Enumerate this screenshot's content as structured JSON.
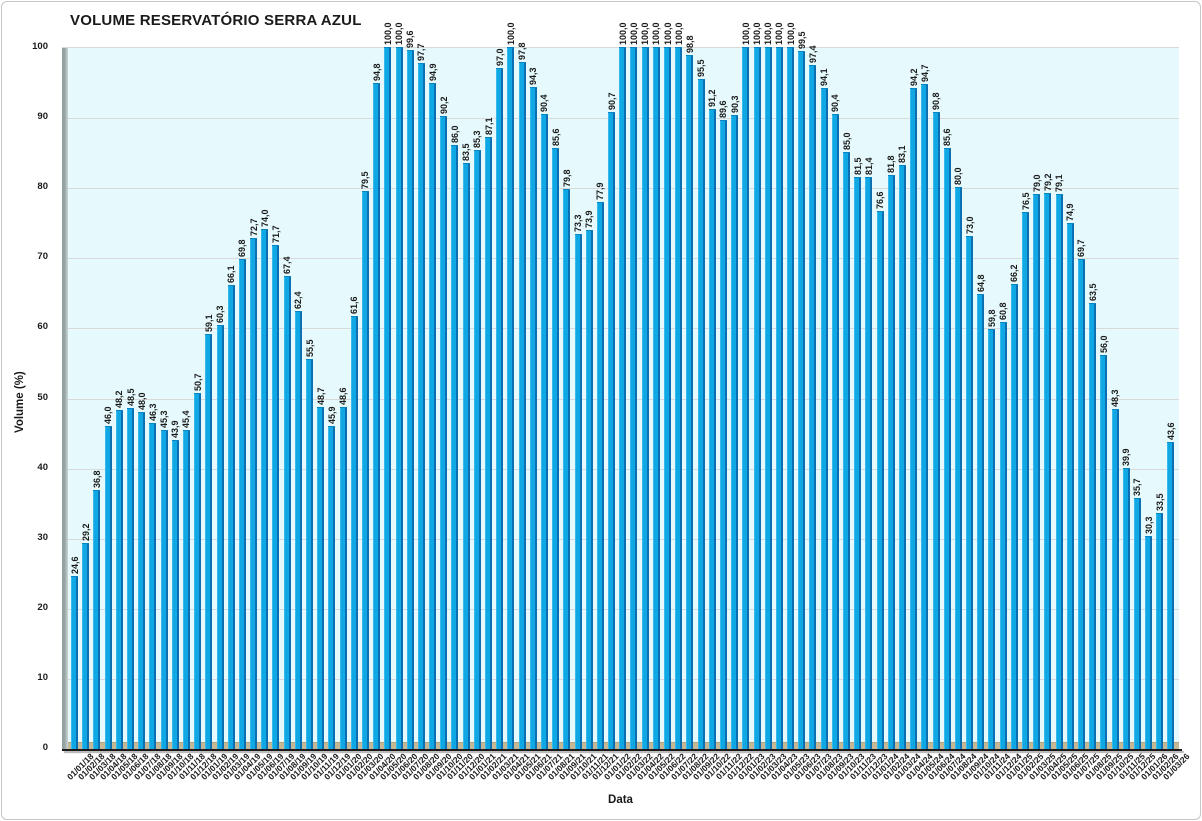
{
  "chart_data": {
    "type": "bar",
    "title": "VOLUME RESERVATÓRIO SERRA AZUL",
    "xlabel": "Data",
    "ylabel": "Volume (%)",
    "ylim": [
      0,
      100
    ],
    "yticks": [
      0,
      10,
      20,
      30,
      40,
      50,
      60,
      70,
      80,
      90,
      100
    ],
    "grid": true,
    "legend_position": "none",
    "value_label_style": "rotated-90-comma-decimal",
    "categories": [
      "01/01/18",
      "01/02/18",
      "01/03/18",
      "01/04/18",
      "01/05/18",
      "01/06/18",
      "01/07/18",
      "01/08/18",
      "01/09/18",
      "01/10/18",
      "01/11/18",
      "01/12/18",
      "01/01/19",
      "01/02/19",
      "01/03/19",
      "01/04/19",
      "01/05/19",
      "01/06/19",
      "01/07/19",
      "01/08/19",
      "01/09/19",
      "01/10/19",
      "01/11/19",
      "01/12/19",
      "01/01/20",
      "01/02/20",
      "01/03/20",
      "01/04/20",
      "01/05/20",
      "01/06/20",
      "01/07/20",
      "01/08/20",
      "01/09/20",
      "01/10/20",
      "01/11/20",
      "01/12/20",
      "01/01/21",
      "01/02/21",
      "01/03/21",
      "01/04/21",
      "01/05/21",
      "01/06/21",
      "01/07/21",
      "01/08/21",
      "01/09/21",
      "01/10/21",
      "01/11/21",
      "01/12/21",
      "01/01/22",
      "01/02/22",
      "01/03/22",
      "01/04/22",
      "01/05/22",
      "01/06/22",
      "01/07/22",
      "01/08/22",
      "01/09/22",
      "01/10/22",
      "01/11/22",
      "01/12/22",
      "01/01/23",
      "01/02/23",
      "01/03/23",
      "01/04/23",
      "01/05/23",
      "01/06/23",
      "01/07/23",
      "01/08/23",
      "01/09/23",
      "01/10/23",
      "01/11/23",
      "01/12/23",
      "01/01/24",
      "01/02/24",
      "01/03/24",
      "01/04/24",
      "01/05/24",
      "01/06/24",
      "01/07/24",
      "01/08/24",
      "01/09/24",
      "01/10/24",
      "01/11/24",
      "01/12/24",
      "01/01/25",
      "01/02/25",
      "01/03/25",
      "01/04/25",
      "01/05/25",
      "01/06/25",
      "01/07/25",
      "01/08/25",
      "01/09/25",
      "01/10/25",
      "01/11/25",
      "01/12/25",
      "01/01/26",
      "01/02/26",
      "01/03/26"
    ],
    "values": [
      24.6,
      29.2,
      36.8,
      46.0,
      48.2,
      48.5,
      48.0,
      46.3,
      45.3,
      43.9,
      45.4,
      50.7,
      59.1,
      60.3,
      66.1,
      69.8,
      72.7,
      74.0,
      71.7,
      67.4,
      62.4,
      55.5,
      48.7,
      45.9,
      48.6,
      61.6,
      79.5,
      94.8,
      100.0,
      100.0,
      99.6,
      97.7,
      94.9,
      90.2,
      86.0,
      83.5,
      85.3,
      87.1,
      97.0,
      100.0,
      97.8,
      94.3,
      90.4,
      85.6,
      79.8,
      73.3,
      73.9,
      77.9,
      90.7,
      100.0,
      100.0,
      100.0,
      100.0,
      100.0,
      100.0,
      98.8,
      95.5,
      91.2,
      89.6,
      90.3,
      100.0,
      100.0,
      100.0,
      100.0,
      100.0,
      99.5,
      97.4,
      94.1,
      90.4,
      85.0,
      81.5,
      81.4,
      76.6,
      81.8,
      83.1,
      94.2,
      94.7,
      90.8,
      85.6,
      80.0,
      73.0,
      64.8,
      59.8,
      60.8,
      66.2,
      76.5,
      79.0,
      79.2,
      79.1,
      74.9,
      69.7,
      63.5,
      56.0,
      48.3,
      39.9,
      35.7,
      30.3,
      33.5,
      43.6
    ],
    "colors": {
      "bar_fill": "#0FA8E4",
      "bar_shade": "#0B6FB2",
      "bar_highlight": "#5BCBF2",
      "plot_background": "#E6FAFD",
      "gridline": "#D9D9D9",
      "floor": "#C6B795",
      "wall": "#93A1A1",
      "baseline": "#1A1A1A",
      "text": "#1A1A1A",
      "frame_border": "#C6C6C6"
    }
  }
}
